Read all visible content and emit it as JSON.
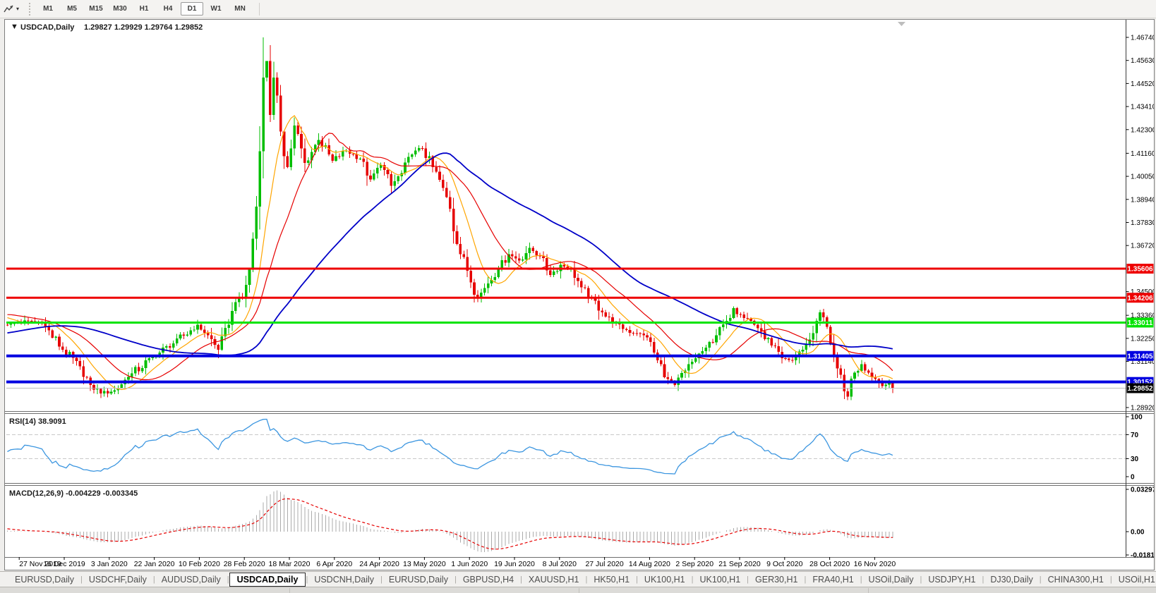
{
  "toolbar": {
    "timeframes": [
      "M1",
      "M5",
      "M15",
      "M30",
      "H1",
      "H4",
      "D1",
      "W1",
      "MN"
    ],
    "active_timeframe": "D1",
    "cursor_tool_caret": "▾"
  },
  "chart": {
    "dropdown_glyph": "▼",
    "title_symbol": "USDCAD,Daily",
    "title_ohlc": "1.29827 1.29929 1.29764 1.29852"
  },
  "indicators": {
    "rsi_label": "RSI(14) 38.9091",
    "macd_label": "MACD(12,26,9) -0.004229 -0.003345"
  },
  "chart_data": {
    "type": "candlestick",
    "symbol": "USDCAD",
    "timeframe": "Daily",
    "ohlc_display": {
      "open": "1.29827",
      "high": "1.29929",
      "low": "1.29764",
      "close": "1.29852"
    },
    "price_axis": {
      "ticks": [
        "1.46740",
        "1.45630",
        "1.44520",
        "1.43410",
        "1.42300",
        "1.41160",
        "1.40050",
        "1.38940",
        "1.37830",
        "1.36720",
        "1.34500",
        "1.33360",
        "1.32250",
        "1.31140",
        "1.28920"
      ],
      "min": 1.2875,
      "max": 1.4762
    },
    "hlines": [
      {
        "price": 1.35606,
        "label": "1.35606",
        "color": "#ee0000",
        "width": 3
      },
      {
        "price": 1.34206,
        "label": "1.34206",
        "color": "#ee0000",
        "width": 3
      },
      {
        "price": 1.33011,
        "label": "1.33011",
        "color": "#00e400",
        "width": 3
      },
      {
        "price": 1.31405,
        "label": "1.31405",
        "color": "#0000e0",
        "width": 4
      },
      {
        "price": 1.30152,
        "label": "1.30152",
        "color": "#0000e0",
        "width": 4
      }
    ],
    "current_price": {
      "value": 1.29852,
      "label": "1.29852",
      "line_color": "#bdbdbd",
      "badge_bg": "#000000"
    },
    "date_labels": [
      "27 Nov 2019",
      "16 Dec 2019",
      "3 Jan 2020",
      "22 Jan 2020",
      "10 Feb 2020",
      "28 Feb 2020",
      "18 Mar 2020",
      "6 Apr 2020",
      "24 Apr 2020",
      "13 May 2020",
      "1 Jun 2020",
      "19 Jun 2020",
      "8 Jul 2020",
      "27 Jul 2020",
      "14 Aug 2020",
      "2 Sep 2020",
      "21 Sep 2020",
      "9 Oct 2020",
      "28 Oct 2020",
      "16 Nov 2020"
    ],
    "candles": {
      "count": 257,
      "anchors": [
        [
          -60,
          1.314
        ],
        [
          -45,
          1.316
        ],
        [
          -32,
          1.32
        ],
        [
          -22,
          1.33
        ],
        [
          -14,
          1.337
        ],
        [
          -8,
          1.335
        ],
        [
          -3,
          1.331
        ],
        [
          0,
          1.329
        ],
        [
          6,
          1.331
        ],
        [
          10,
          1.33
        ],
        [
          16,
          1.317
        ],
        [
          21,
          1.309
        ],
        [
          24,
          1.3
        ],
        [
          27,
          1.296
        ],
        [
          31,
          1.2975
        ],
        [
          35,
          1.304
        ],
        [
          42,
          1.3135
        ],
        [
          48,
          1.32
        ],
        [
          55,
          1.329
        ],
        [
          58,
          1.324
        ],
        [
          61,
          1.317
        ],
        [
          64,
          1.329
        ],
        [
          66,
          1.34
        ],
        [
          68,
          1.342
        ],
        [
          70,
          1.356
        ],
        [
          72,
          1.386
        ],
        [
          74,
          1.448
        ],
        [
          75,
          1.456
        ],
        [
          76,
          1.43
        ],
        [
          77,
          1.448
        ],
        [
          79,
          1.422
        ],
        [
          81,
          1.405
        ],
        [
          83,
          1.425
        ],
        [
          86,
          1.407
        ],
        [
          90,
          1.418
        ],
        [
          94,
          1.408
        ],
        [
          98,
          1.413
        ],
        [
          102,
          1.409
        ],
        [
          105,
          1.399
        ],
        [
          108,
          1.406
        ],
        [
          111,
          1.396
        ],
        [
          114,
          1.402
        ],
        [
          117,
          1.411
        ],
        [
          120,
          1.414
        ],
        [
          123,
          1.405
        ],
        [
          126,
          1.395
        ],
        [
          128,
          1.385
        ],
        [
          130,
          1.368
        ],
        [
          133,
          1.355
        ],
        [
          136,
          1.342
        ],
        [
          139,
          1.349
        ],
        [
          142,
          1.356
        ],
        [
          145,
          1.363
        ],
        [
          148,
          1.36
        ],
        [
          151,
          1.366
        ],
        [
          154,
          1.362
        ],
        [
          157,
          1.353
        ],
        [
          160,
          1.358
        ],
        [
          163,
          1.356
        ],
        [
          166,
          1.347
        ],
        [
          169,
          1.342
        ],
        [
          172,
          1.335
        ],
        [
          175,
          1.33
        ],
        [
          178,
          1.327
        ],
        [
          182,
          1.325
        ],
        [
          185,
          1.323
        ],
        [
          188,
          1.312
        ],
        [
          191,
          1.303
        ],
        [
          193,
          1.3
        ],
        [
          196,
          1.307
        ],
        [
          199,
          1.313
        ],
        [
          202,
          1.318
        ],
        [
          205,
          1.324
        ],
        [
          208,
          1.331
        ],
        [
          210,
          1.337
        ],
        [
          212,
          1.334
        ],
        [
          215,
          1.331
        ],
        [
          218,
          1.326
        ],
        [
          221,
          1.319
        ],
        [
          224,
          1.313
        ],
        [
          227,
          1.312
        ],
        [
          230,
          1.317
        ],
        [
          232,
          1.322
        ],
        [
          234,
          1.331
        ],
        [
          235,
          1.335
        ],
        [
          237,
          1.328
        ],
        [
          238,
          1.32
        ],
        [
          240,
          1.308
        ],
        [
          242,
          1.297
        ],
        [
          243,
          1.2945
        ],
        [
          245,
          1.306
        ],
        [
          247,
          1.31
        ],
        [
          249,
          1.306
        ],
        [
          251,
          1.303
        ],
        [
          253,
          1.2995
        ],
        [
          255,
          1.301
        ],
        [
          256,
          1.29852
        ]
      ],
      "wick_overrides": {
        "27": {
          "l": 1.2938
        },
        "61": {
          "l": 1.313
        },
        "74": {
          "h": 1.4674
        },
        "75": {
          "h": 1.456
        },
        "242": {
          "l": 1.2932
        },
        "243": {
          "l": 1.2928
        }
      }
    },
    "moving_averages": [
      {
        "period": 10,
        "color": "#ffa500",
        "width": 1.2
      },
      {
        "period": 21,
        "color": "#e60000",
        "width": 1.2
      },
      {
        "period": 55,
        "color": "#0000c8",
        "width": 1.8
      }
    ],
    "rsi": {
      "period": 14,
      "last": 38.9091,
      "levels": [
        70,
        30
      ],
      "scale": [
        "100",
        "70",
        "30",
        "0"
      ],
      "color": "#3c96e0"
    },
    "macd": {
      "fast": 12,
      "slow": 26,
      "signal": 9,
      "values": [
        -0.004229,
        -0.003345
      ],
      "scale": [
        "0.032972",
        "0.00",
        "-0.018154"
      ],
      "hist_color": "#ababab",
      "signal_color": "#e60000"
    },
    "colors": {
      "bull": "#00be00",
      "bear": "#e60000",
      "background": "#ffffff",
      "axis_text": "#000000"
    }
  },
  "tabs": {
    "items": [
      "EURUSD,Daily",
      "USDCHF,Daily",
      "AUDUSD,Daily",
      "USDCAD,Daily",
      "USDCNH,Daily",
      "EURUSD,Daily",
      "GBPUSD,H4",
      "XAUUSD,H1",
      "HK50,H1",
      "UK100,H1",
      "UK100,H1",
      "GER30,H1",
      "FRA40,H1",
      "USOil,Daily",
      "USDJPY,H1",
      "DJ30,Daily",
      "CHINA300,H1",
      "USOil,H1"
    ],
    "active_index": 3,
    "scroll_left_glyph": "◄",
    "scroll_right_glyph": "►"
  }
}
